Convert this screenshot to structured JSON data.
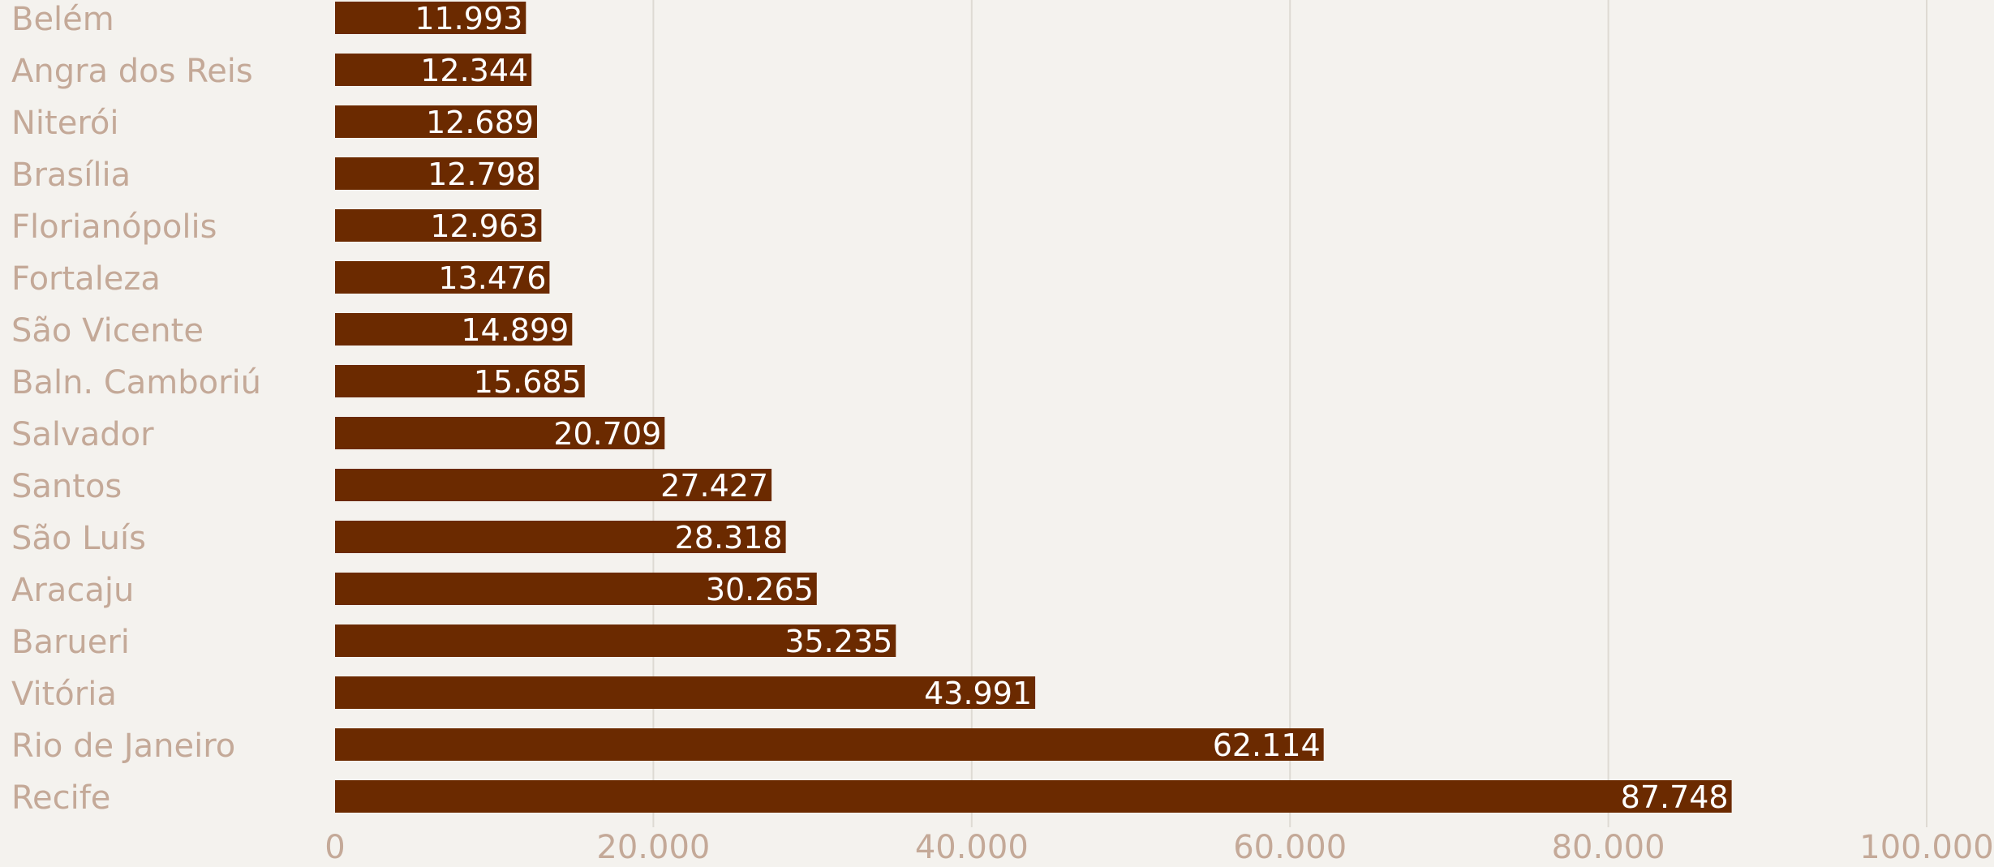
{
  "chart_data": {
    "type": "bar",
    "orientation": "horizontal",
    "categories": [
      "Belém",
      "Angra dos Reis",
      "Niterói",
      "Brasília",
      "Florianópolis",
      "Fortaleza",
      "São Vicente",
      "Baln. Camboriú",
      "Salvador",
      "Santos",
      "São Luís",
      "Aracaju",
      "Barueri",
      "Vitória",
      "Rio de Janeiro",
      "Recife"
    ],
    "values": [
      11993,
      12344,
      12689,
      12798,
      12963,
      13476,
      14899,
      15685,
      20709,
      27427,
      28318,
      30265,
      35235,
      43991,
      62114,
      87748
    ],
    "value_labels": [
      "11.993",
      "12.344",
      "12.689",
      "12.798",
      "12.963",
      "13.476",
      "14.899",
      "15.685",
      "20.709",
      "27.427",
      "28.318",
      "30.265",
      "35.235",
      "43.991",
      "62.114",
      "87.748"
    ],
    "xlim": [
      0,
      100000
    ],
    "x_ticks": [
      0,
      20000,
      40000,
      60000,
      80000,
      100000
    ],
    "x_tick_labels": [
      "0",
      "20.000",
      "40.000",
      "60.000",
      "80.000",
      "100.000"
    ],
    "title": "",
    "xlabel": "",
    "ylabel": "",
    "grid": "vertical",
    "legend": "none",
    "colors": {
      "bar": "#6b2a00",
      "bar_label": "#ffffff",
      "category_label": "#c4a998",
      "tick_label": "#c4a998",
      "grid": "#dedad3",
      "background": "#f4f2ee"
    }
  }
}
